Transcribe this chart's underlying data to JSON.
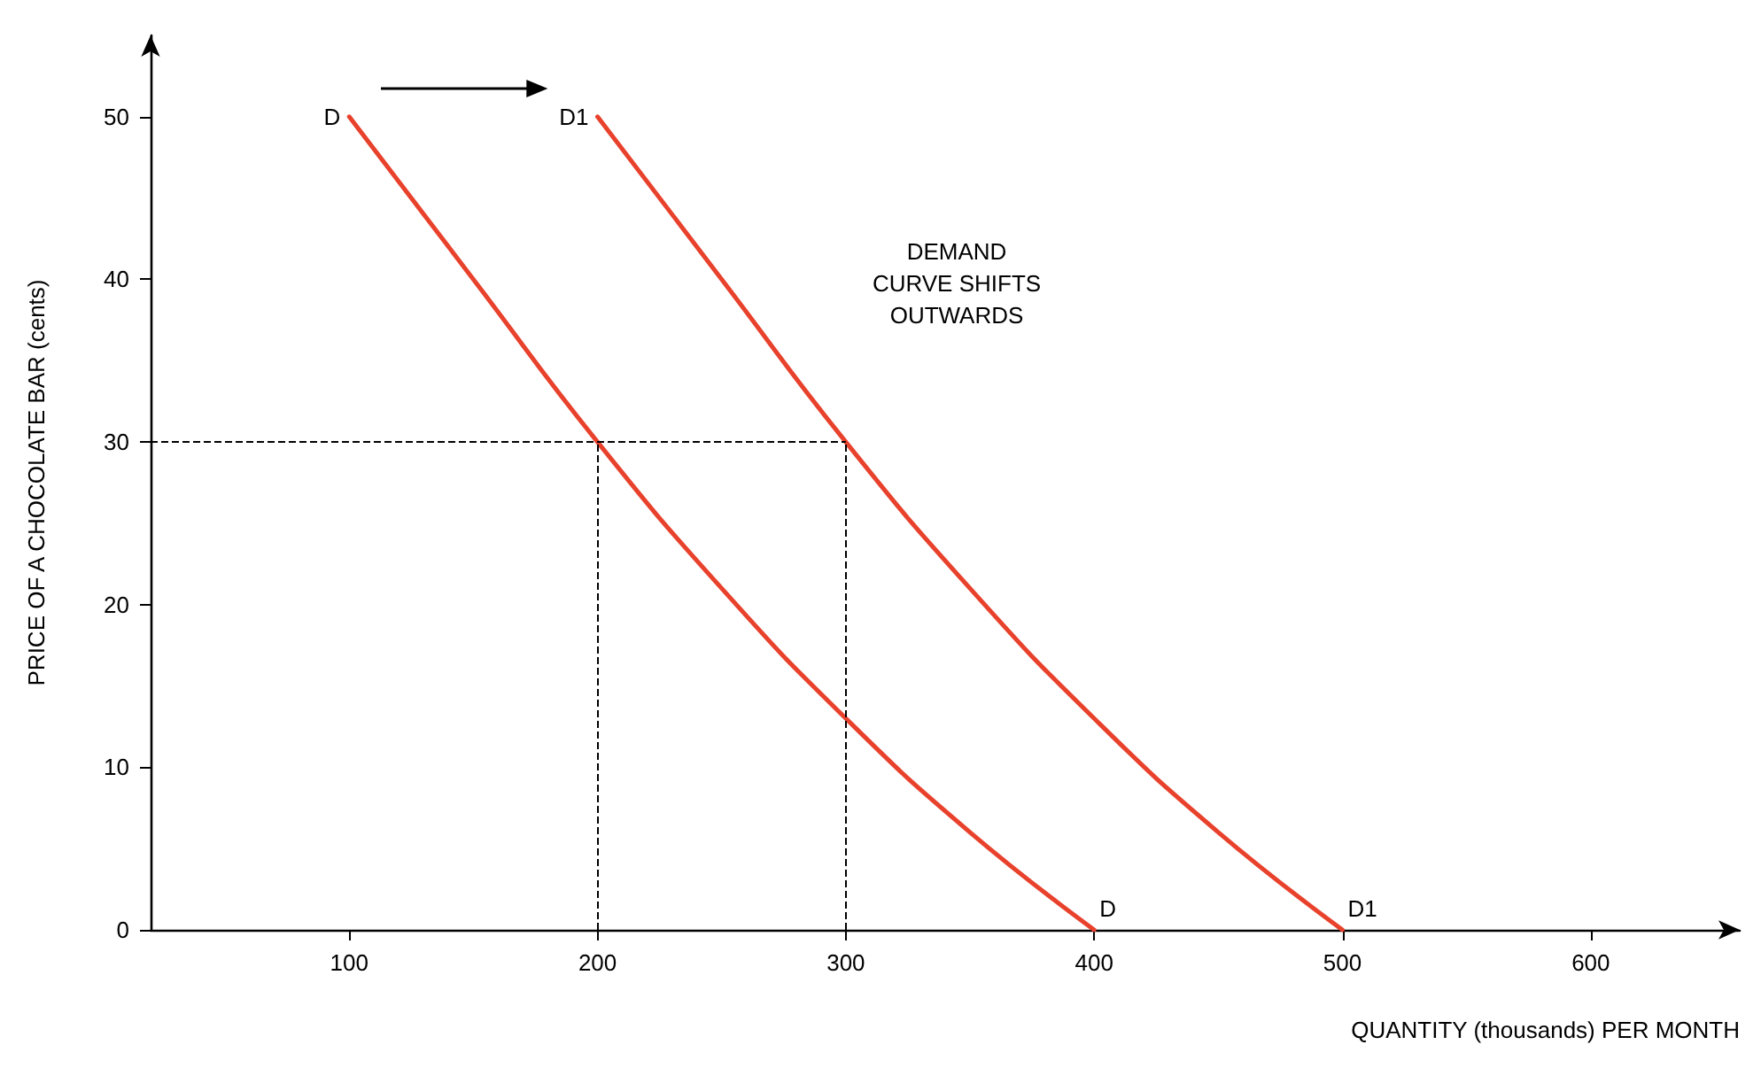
{
  "chart_data": {
    "type": "line",
    "ylabel": "PRICE OF A CHOCOLATE BAR (cents)",
    "xlabel": "QUANTITY (thousands) PER MONTH",
    "xlim": [
      20,
      660
    ],
    "xticks": [
      100,
      200,
      300,
      400,
      500,
      600
    ],
    "ylim": [
      0,
      55
    ],
    "yticks": [
      0,
      10,
      20,
      30,
      40,
      50
    ],
    "grid": false,
    "legend": false,
    "marker": "none",
    "line_style": "solid",
    "series": [
      {
        "name": "D",
        "color": "#e8412c",
        "x": [
          100,
          150,
          200,
          250,
          300,
          350,
          400
        ],
        "values": [
          50,
          40,
          30,
          21,
          13,
          6,
          0
        ]
      },
      {
        "name": "D1",
        "color": "#e8412c",
        "x": [
          200,
          250,
          300,
          350,
          400,
          450,
          500
        ],
        "values": [
          50,
          40,
          30,
          21,
          13,
          6,
          0
        ]
      }
    ],
    "ref_lines": [
      {
        "axis": "y",
        "value": 30,
        "color": "#000000",
        "line_style": "dashed"
      },
      {
        "axis": "x",
        "value": 200,
        "color": "#000000",
        "line_style": "dashed"
      },
      {
        "axis": "x",
        "value": 300,
        "color": "#000000",
        "line_style": "dashed"
      }
    ],
    "annotations": [
      "DEMAND\nCURVE SHIFTS\nOUTWARDS"
    ]
  }
}
